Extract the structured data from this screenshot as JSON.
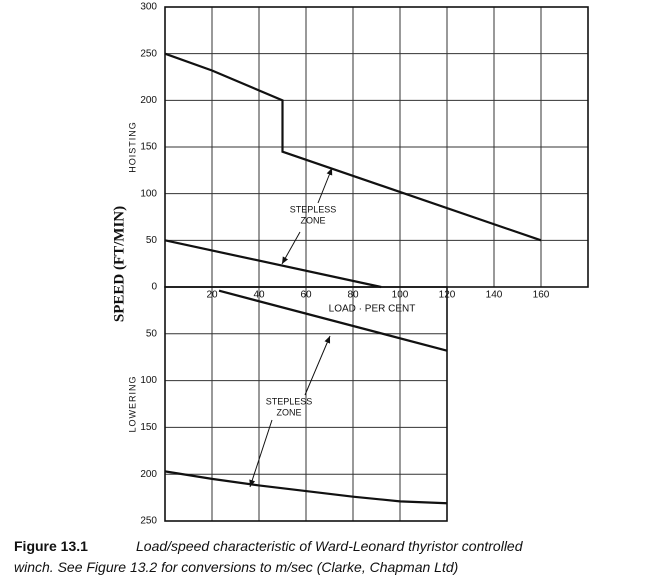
{
  "y_title": "SPEED (FT/MIN)",
  "chart_data": [
    {
      "type": "line",
      "xlabel": "LOAD · PER CENT",
      "ylabel": "HOISTING",
      "xlim": [
        0,
        180
      ],
      "xticks": [
        20,
        40,
        60,
        80,
        100,
        120,
        140,
        160
      ],
      "ylim": [
        0,
        300
      ],
      "yticks": [
        0,
        50,
        100,
        150,
        200,
        250,
        300
      ],
      "grid": true,
      "annotations": [
        "STEPLESS",
        "ZONE"
      ],
      "series": [
        {
          "color": "#111111",
          "x": [
            0,
            20,
            50,
            50,
            160
          ],
          "values": [
            250,
            232,
            200,
            145,
            50
          ]
        },
        {
          "color": "#111111",
          "x": [
            0,
            92
          ],
          "values": [
            50,
            0
          ]
        }
      ]
    },
    {
      "type": "line",
      "ylabel": "LOWERING",
      "inverted": true,
      "xlim": [
        0,
        120
      ],
      "xticks": [
        20,
        40,
        60,
        80,
        100
      ],
      "ylim": [
        0,
        250
      ],
      "yticks": [
        50,
        100,
        150,
        200,
        250
      ],
      "grid": true,
      "annotations": [
        "STEPLESS",
        "ZONE"
      ],
      "series": [
        {
          "color": "#111111",
          "x": [
            23,
            120
          ],
          "values": [
            4,
            68
          ]
        },
        {
          "color": "#111111",
          "x": [
            0,
            20,
            40,
            60,
            80,
            100,
            120
          ],
          "values": [
            197,
            205,
            212,
            218,
            224,
            229,
            231
          ]
        }
      ]
    }
  ],
  "caption": {
    "label": "Figure 13.1",
    "lines": [
      "Load/speed characteristic of Ward-Leonard thyristor controlled",
      "winch. See Figure 13.2 for conversions to m/sec (Clarke, Chapman Ltd)"
    ]
  }
}
